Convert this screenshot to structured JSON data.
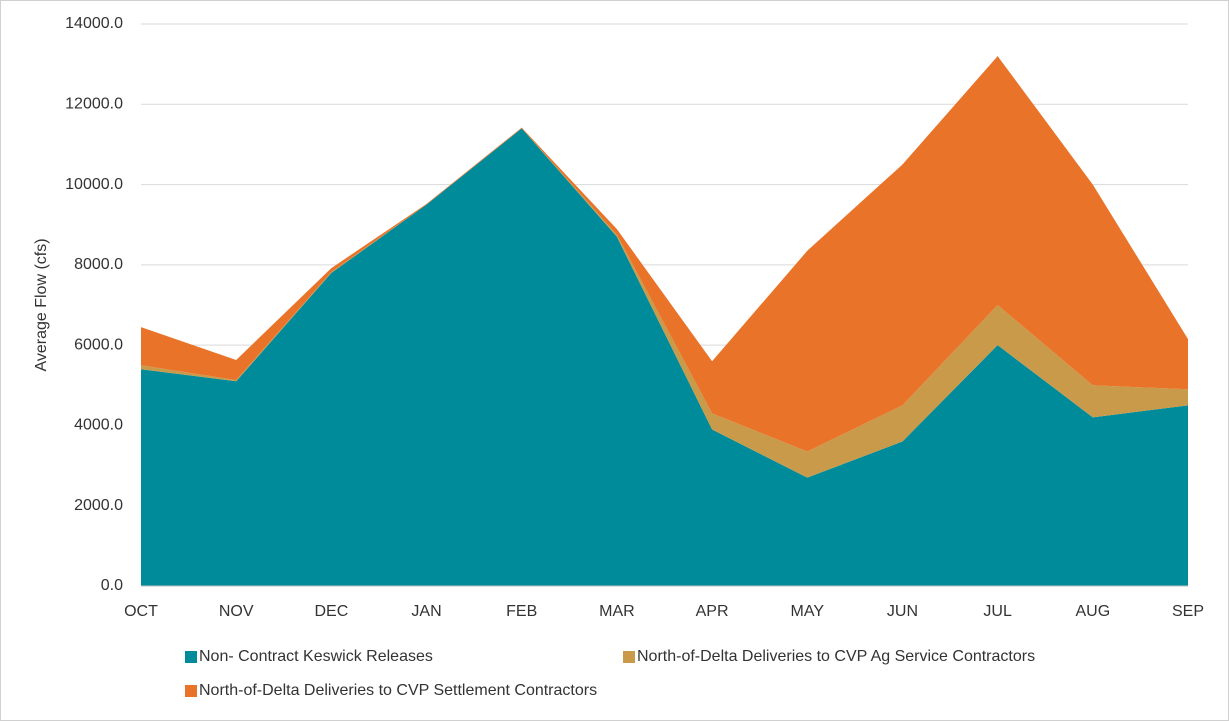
{
  "chart_data": {
    "type": "stacked-area",
    "y_label": "Average Flow (cfs)",
    "categories": [
      "OCT",
      "NOV",
      "DEC",
      "JAN",
      "FEB",
      "MAR",
      "APR",
      "MAY",
      "JUN",
      "JUL",
      "AUG",
      "SEP"
    ],
    "series": [
      {
        "name": "Non- Contract Keswick Releases",
        "color": "#008b9a",
        "values": [
          5400,
          5100,
          7800,
          9500,
          11400,
          8700,
          3900,
          2700,
          3600,
          6000,
          4200,
          4500
        ]
      },
      {
        "name": "North-of-Delta Deliveries to CVP Ag Service Contractors",
        "color": "#c99a4a",
        "values": [
          100,
          30,
          20,
          0,
          0,
          50,
          400,
          650,
          900,
          1000,
          800,
          400
        ]
      },
      {
        "name": "North-of-Delta Deliveries to CVP Settlement Contractors",
        "color": "#e97328",
        "values": [
          950,
          500,
          100,
          20,
          20,
          140,
          1300,
          5000,
          6000,
          6200,
          5000,
          1250
        ]
      }
    ],
    "ylim": [
      0,
      14000
    ],
    "yticks": [
      {
        "value": 0,
        "label": "0.0"
      },
      {
        "value": 2000,
        "label": "2000.0"
      },
      {
        "value": 4000,
        "label": "4000.0"
      },
      {
        "value": 6000,
        "label": "6000.0"
      },
      {
        "value": 8000,
        "label": "8000.0"
      },
      {
        "value": 10000,
        "label": "10000.0"
      },
      {
        "value": 12000,
        "label": "12000.0"
      },
      {
        "value": 14000,
        "label": "14000.0"
      }
    ],
    "grid": true
  }
}
